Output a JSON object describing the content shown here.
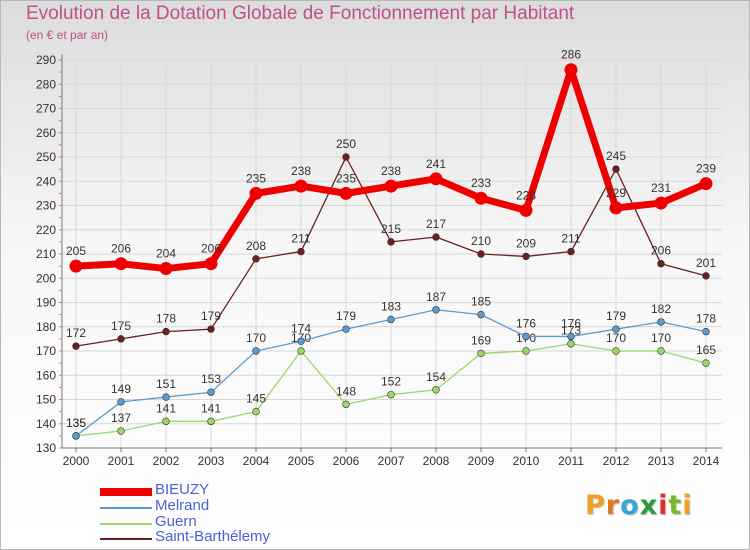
{
  "chart_data": {
    "type": "line",
    "title": "Evolution de la Dotation Globale de Fonctionnement par Habitant",
    "subtitle": "(en € et par an)",
    "x": [
      "2000",
      "2001",
      "2002",
      "2003",
      "2004",
      "2005",
      "2006",
      "2007",
      "2008",
      "2009",
      "2010",
      "2011",
      "2012",
      "2013",
      "2014"
    ],
    "yticks": [
      "130",
      "140",
      "150",
      "160",
      "170",
      "180",
      "190",
      "200",
      "210",
      "220",
      "230",
      "240",
      "250",
      "260",
      "270",
      "280",
      "290"
    ],
    "ylim": [
      130,
      290
    ],
    "series": [
      {
        "name": "Saint-Barthélemy",
        "color": "#6b2020",
        "values": [
          172,
          175,
          178,
          179,
          208,
          211,
          250,
          215,
          217,
          210,
          209,
          211,
          245,
          206,
          201
        ],
        "labels": [
          "172",
          "175",
          "178",
          "179",
          "208",
          "211",
          "250",
          "215",
          "217",
          "210",
          "209",
          "211",
          "245",
          "206",
          "201"
        ]
      },
      {
        "name": "Guern",
        "color": "#99d86a",
        "values": [
          135,
          137,
          141,
          141,
          145,
          170,
          148,
          152,
          154,
          169,
          170,
          173,
          170,
          170,
          165
        ],
        "labels": [
          "135",
          "137",
          "141",
          "141",
          "145",
          "170",
          "148",
          "152",
          "154",
          "169",
          "170",
          "173",
          "170",
          "170",
          "165"
        ]
      },
      {
        "name": "Melrand",
        "color": "#5b9bd0",
        "values": [
          135,
          149,
          151,
          153,
          170,
          174,
          179,
          183,
          187,
          185,
          176,
          176,
          179,
          182,
          178
        ],
        "labels": [
          "135",
          "149",
          "151",
          "153",
          "170",
          "174",
          "179",
          "183",
          "187",
          "185",
          "176",
          "176",
          "179",
          "182",
          "178"
        ]
      },
      {
        "name": "BIEUZY",
        "color": "#ee0000",
        "values": [
          205,
          206,
          204,
          206,
          235,
          238,
          235,
          238,
          241,
          233,
          228,
          286,
          229,
          231,
          239
        ],
        "labels": [
          "205",
          "206",
          "204",
          "206",
          "235",
          "238",
          "235",
          "238",
          "241",
          "233",
          "228",
          "286",
          "229",
          "231",
          "239"
        ]
      }
    ]
  },
  "legend": {
    "items": [
      {
        "label": "BIEUZY",
        "color": "#ee0000"
      },
      {
        "label": "Melrand",
        "color": "#5b9bd0"
      },
      {
        "label": "Guern",
        "color": "#99d86a"
      },
      {
        "label": "Saint-Barthélemy",
        "color": "#6b2020"
      }
    ]
  },
  "logo": {
    "text": "Proxiti"
  }
}
